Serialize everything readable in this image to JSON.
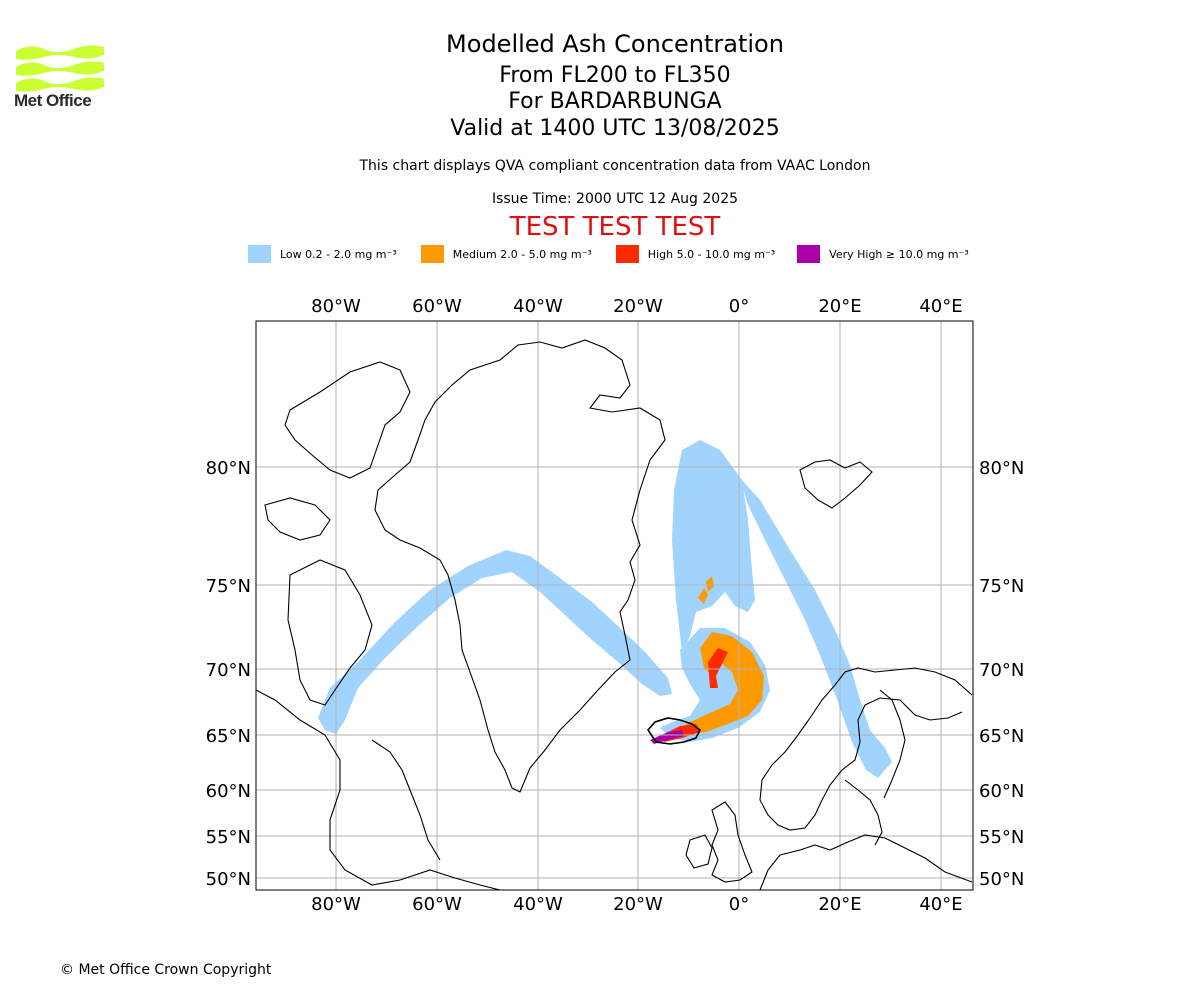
{
  "header": {
    "title": "Modelled Ash Concentration",
    "subtitle_1": "From FL200 to FL350",
    "subtitle_2": "For BARDARBUNGA",
    "subtitle_3": "Valid at 1400 UTC 13/08/2025",
    "info_1": "This chart displays QVA compliant concentration data from VAAC London",
    "info_2": "Issue Time: 2000 UTC 12 Aug 2025",
    "test_banner": "TEST TEST TEST"
  },
  "logo": {
    "text": "Met Office",
    "color": "#ccff33"
  },
  "legend": [
    {
      "label": "Low 0.2 - 2.0 mg m⁻³",
      "color": "#a0d4ff"
    },
    {
      "label": "Medium 2.0 - 5.0 mg m⁻³",
      "color": "#ff9900"
    },
    {
      "label": "High 5.0 - 10.0 mg m⁻³",
      "color": "#ff2a00"
    },
    {
      "label": "Very High ≥ 10.0 mg m⁻³",
      "color": "#aa00aa"
    }
  ],
  "map": {
    "lon_ticks": [
      "80°W",
      "60°W",
      "40°W",
      "20°W",
      "0°",
      "20°E",
      "40°E"
    ],
    "lat_ticks": [
      "80°N",
      "75°N",
      "70°N",
      "65°N",
      "60°N",
      "55°N",
      "50°N"
    ],
    "volcano": "BARDARBUNGA"
  },
  "footer": {
    "copyright": "© Met Office Crown Copyright"
  }
}
